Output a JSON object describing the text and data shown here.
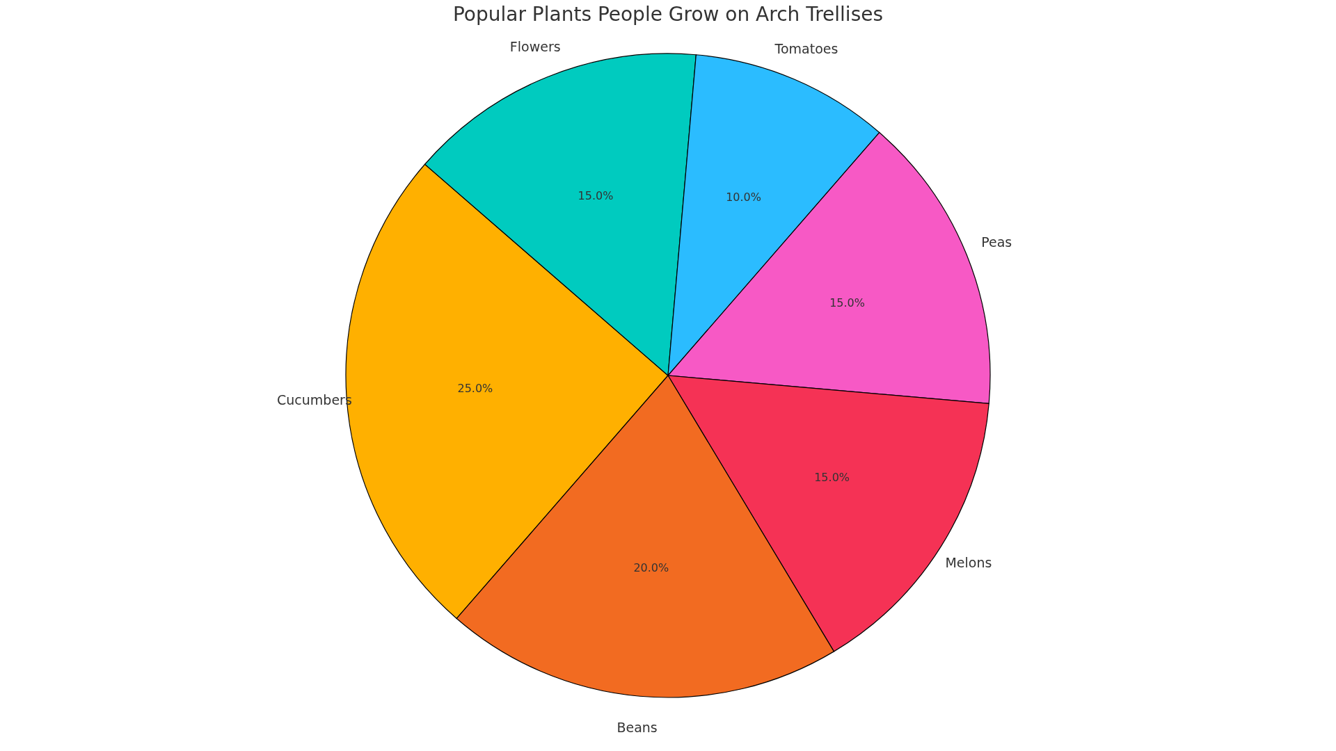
{
  "chart_data": {
    "type": "pie",
    "title": "Popular Plants People Grow on Arch Trellises",
    "categories": [
      "Cucumbers",
      "Flowers",
      "Tomatoes",
      "Peas",
      "Melons",
      "Beans"
    ],
    "values": [
      25,
      15,
      10,
      15,
      15,
      20
    ],
    "value_labels": [
      "25.0%",
      "15.0%",
      "10.0%",
      "15.0%",
      "15.0%",
      "20.0%"
    ],
    "colors": [
      "#ffb000",
      "#00cbbf",
      "#2bbcff",
      "#f759c5",
      "#f53255",
      "#f26b21"
    ],
    "legend": false
  }
}
